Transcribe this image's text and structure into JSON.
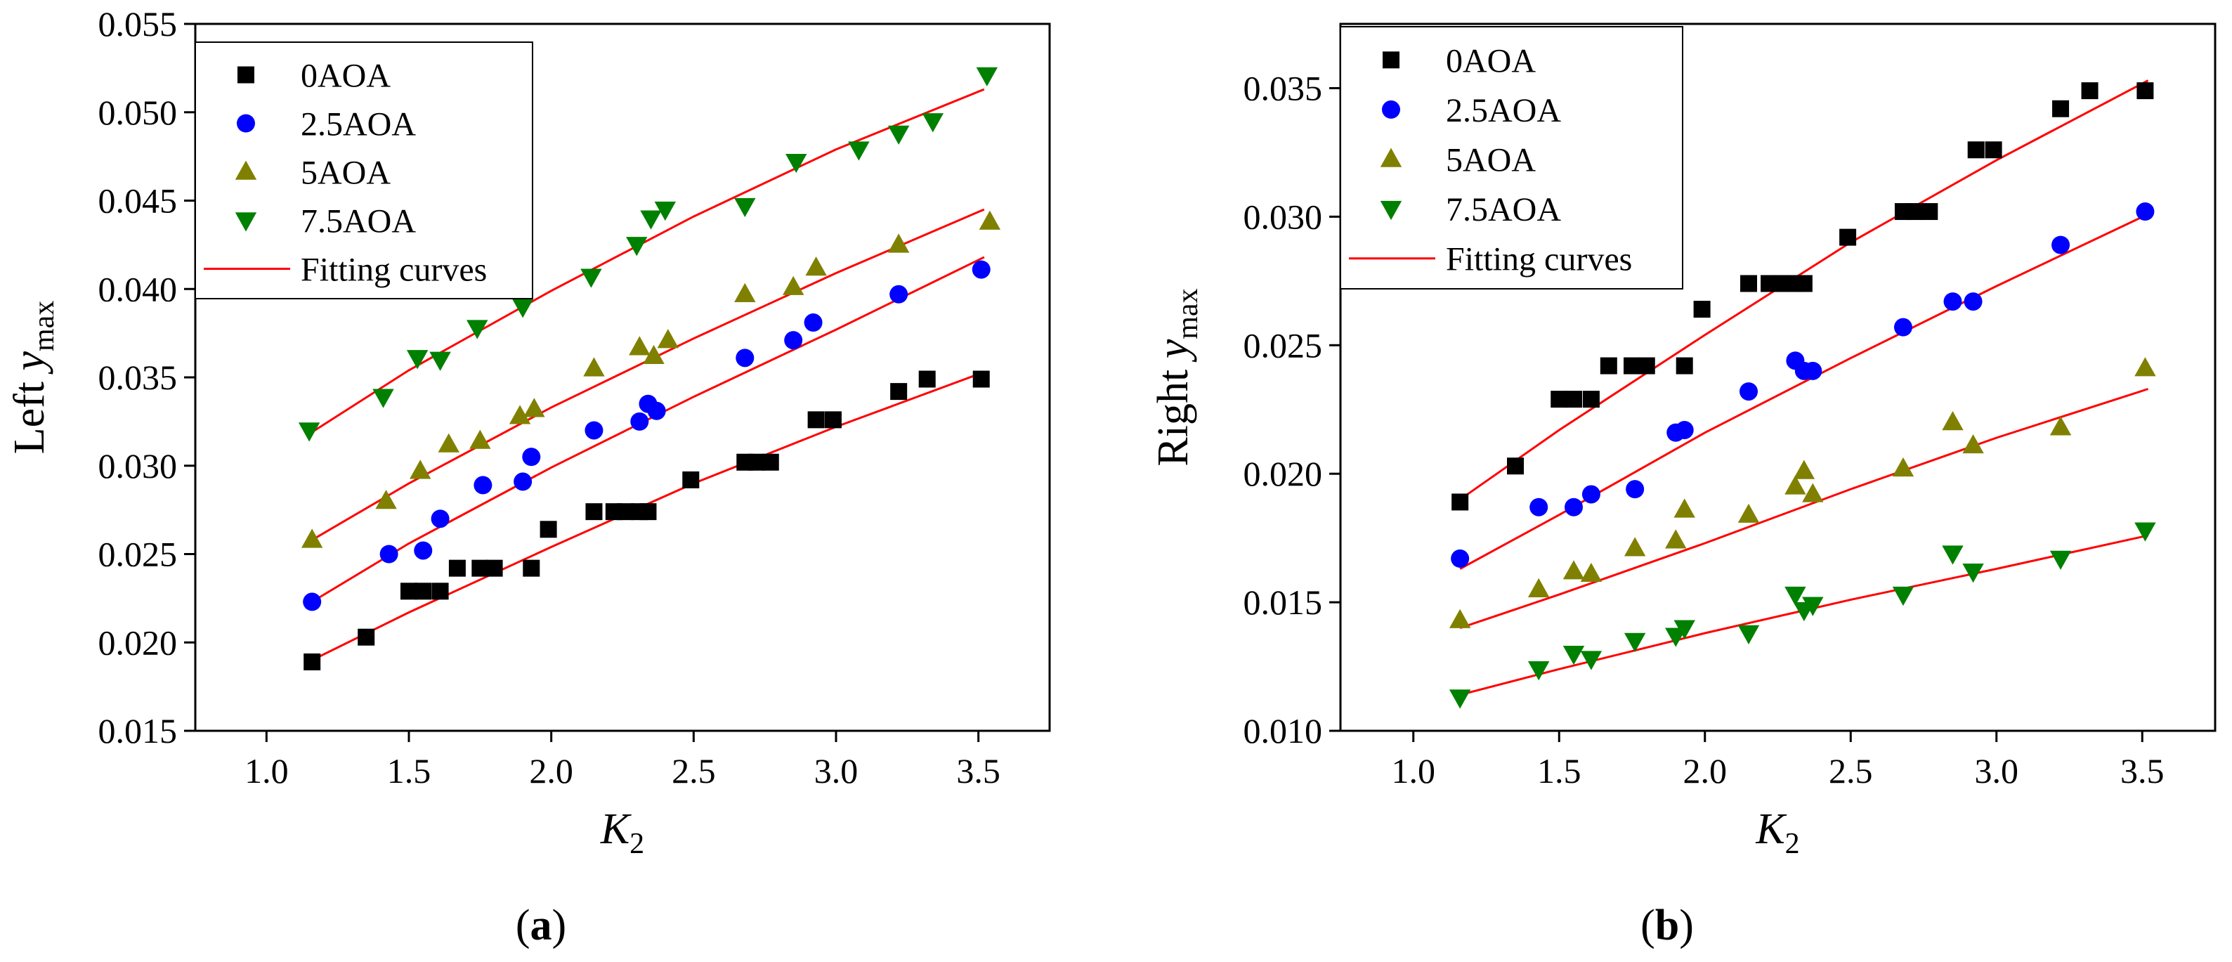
{
  "chart_data": [
    {
      "type": "scatter",
      "panel_label": "(a)",
      "xlabel": "K",
      "xlabel_sub": "2",
      "ylabel_prefix": "Left ",
      "ylabel_var": "y",
      "ylabel_sub": "max",
      "xlim": [
        0.75,
        3.75
      ],
      "ylim": [
        0.015,
        0.055
      ],
      "xticks": [
        1.0,
        1.5,
        2.0,
        2.5,
        3.0,
        3.5
      ],
      "xtick_labels": [
        "1.0",
        "1.5",
        "2.0",
        "2.5",
        "3.0",
        "3.5"
      ],
      "yticks": [
        0.015,
        0.02,
        0.025,
        0.03,
        0.035,
        0.04,
        0.045,
        0.05,
        0.055
      ],
      "ytick_labels": [
        "0.015",
        "0.020",
        "0.025",
        "0.030",
        "0.035",
        "0.040",
        "0.045",
        "0.050",
        "0.055"
      ],
      "legend_position": "top-left",
      "fit_label": "Fitting curves",
      "fit_color": "#ff0000",
      "series": [
        {
          "name": "0AOA",
          "marker": "square",
          "color": "#000000",
          "x": [
            1.16,
            1.35,
            1.5,
            1.55,
            1.61,
            1.67,
            1.75,
            1.8,
            1.93,
            1.99,
            2.15,
            2.22,
            2.26,
            2.31,
            2.34,
            2.49,
            2.68,
            2.72,
            2.77,
            2.93,
            2.99,
            3.22,
            3.32,
            3.51
          ],
          "y": [
            0.0189,
            0.0203,
            0.0229,
            0.0229,
            0.0229,
            0.0242,
            0.0242,
            0.0242,
            0.0242,
            0.0264,
            0.0274,
            0.0274,
            0.0274,
            0.0274,
            0.0274,
            0.0292,
            0.0302,
            0.0302,
            0.0302,
            0.0326,
            0.0326,
            0.0342,
            0.0349,
            0.0349
          ],
          "fit": {
            "x": [
              1.16,
              1.5,
              2.0,
              2.5,
              3.0,
              3.52
            ],
            "y": [
              0.019,
              0.0217,
              0.0254,
              0.029,
              0.0322,
              0.0353
            ]
          }
        },
        {
          "name": "2.5AOA",
          "marker": "circle",
          "color": "#0000ff",
          "x": [
            1.16,
            1.43,
            1.55,
            1.61,
            1.76,
            1.9,
            1.93,
            2.15,
            2.31,
            2.34,
            2.37,
            2.68,
            2.85,
            2.92,
            3.22,
            3.51
          ],
          "y": [
            0.0223,
            0.025,
            0.0252,
            0.027,
            0.0289,
            0.0291,
            0.0305,
            0.032,
            0.0325,
            0.0335,
            0.0331,
            0.0361,
            0.0371,
            0.0381,
            0.0397,
            0.0411
          ],
          "fit": {
            "x": [
              1.16,
              1.5,
              2.0,
              2.5,
              3.0,
              3.52
            ],
            "y": [
              0.0223,
              0.0256,
              0.0299,
              0.0339,
              0.0377,
              0.0418
            ]
          }
        },
        {
          "name": "5AOA",
          "marker": "triangle-up",
          "color": "#808000",
          "x": [
            1.16,
            1.42,
            1.54,
            1.64,
            1.75,
            1.89,
            1.94,
            2.15,
            2.31,
            2.36,
            2.41,
            2.68,
            2.85,
            2.93,
            3.22,
            3.54
          ],
          "y": [
            0.0258,
            0.028,
            0.0297,
            0.0312,
            0.0314,
            0.0328,
            0.0332,
            0.0355,
            0.0367,
            0.0362,
            0.0371,
            0.0397,
            0.0401,
            0.0412,
            0.0425,
            0.0438
          ],
          "fit": {
            "x": [
              1.16,
              1.5,
              2.0,
              2.5,
              3.0,
              3.52
            ],
            "y": [
              0.0258,
              0.029,
              0.0333,
              0.0372,
              0.0409,
              0.0445
            ]
          }
        },
        {
          "name": "7.5AOA",
          "marker": "triangle-down",
          "color": "#008000",
          "x": [
            1.15,
            1.41,
            1.53,
            1.61,
            1.74,
            1.9,
            2.14,
            2.3,
            2.35,
            2.4,
            2.68,
            2.86,
            3.08,
            3.22,
            3.34,
            3.53
          ],
          "y": [
            0.032,
            0.0339,
            0.0361,
            0.036,
            0.0378,
            0.039,
            0.0407,
            0.0425,
            0.044,
            0.0445,
            0.0447,
            0.0472,
            0.0479,
            0.0488,
            0.0495,
            0.0521
          ],
          "fit": {
            "x": [
              1.15,
              1.5,
              2.0,
              2.5,
              3.0,
              3.52
            ],
            "y": [
              0.0318,
              0.0354,
              0.0399,
              0.0441,
              0.0479,
              0.0513
            ]
          }
        }
      ]
    },
    {
      "type": "scatter",
      "panel_label": "(b)",
      "xlabel": "K",
      "xlabel_sub": "2",
      "ylabel_prefix": "Right ",
      "ylabel_var": "y",
      "ylabel_sub": "max",
      "xlim": [
        0.75,
        3.75
      ],
      "ylim": [
        0.01,
        0.0375
      ],
      "xticks": [
        1.0,
        1.5,
        2.0,
        2.5,
        3.0,
        3.5
      ],
      "xtick_labels": [
        "1.0",
        "1.5",
        "2.0",
        "2.5",
        "3.0",
        "3.5"
      ],
      "yticks": [
        0.01,
        0.015,
        0.02,
        0.025,
        0.03,
        0.035
      ],
      "ytick_labels": [
        "0.010",
        "0.015",
        "0.020",
        "0.025",
        "0.030",
        "0.035"
      ],
      "legend_position": "top-left",
      "fit_label": "Fitting curves",
      "fit_color": "#ff0000",
      "series": [
        {
          "name": "0AOA",
          "marker": "square",
          "color": "#000000",
          "x": [
            1.16,
            1.35,
            1.5,
            1.55,
            1.61,
            1.67,
            1.75,
            1.8,
            1.93,
            1.99,
            2.15,
            2.22,
            2.26,
            2.31,
            2.34,
            2.49,
            2.68,
            2.72,
            2.77,
            2.93,
            2.99,
            3.22,
            3.32,
            3.51
          ],
          "y": [
            0.0189,
            0.0203,
            0.0229,
            0.0229,
            0.0229,
            0.0242,
            0.0242,
            0.0242,
            0.0242,
            0.0264,
            0.0274,
            0.0274,
            0.0274,
            0.0274,
            0.0274,
            0.0292,
            0.0302,
            0.0302,
            0.0302,
            0.0326,
            0.0326,
            0.0342,
            0.0349,
            0.0349
          ],
          "fit": {
            "x": [
              1.16,
              1.5,
              2.0,
              2.5,
              3.0,
              3.52
            ],
            "y": [
              0.019,
              0.0217,
              0.0254,
              0.029,
              0.0322,
              0.0353
            ]
          }
        },
        {
          "name": "2.5AOA",
          "marker": "circle",
          "color": "#0000ff",
          "x": [
            1.16,
            1.43,
            1.55,
            1.61,
            1.76,
            1.9,
            1.93,
            2.15,
            2.31,
            2.34,
            2.37,
            2.68,
            2.85,
            2.92,
            3.22,
            3.51
          ],
          "y": [
            0.0167,
            0.0187,
            0.0187,
            0.0192,
            0.0194,
            0.0216,
            0.0217,
            0.0232,
            0.0244,
            0.024,
            0.024,
            0.0257,
            0.0267,
            0.0267,
            0.0289,
            0.0302
          ],
          "fit": {
            "x": [
              1.16,
              1.5,
              2.0,
              2.5,
              3.0,
              3.52
            ],
            "y": [
              0.0163,
              0.0184,
              0.0216,
              0.0245,
              0.0273,
              0.0301
            ]
          }
        },
        {
          "name": "5AOA",
          "marker": "triangle-up",
          "color": "#808000",
          "x": [
            1.16,
            1.43,
            1.55,
            1.61,
            1.76,
            1.9,
            1.93,
            2.15,
            2.31,
            2.34,
            2.37,
            2.68,
            2.85,
            2.92,
            3.22,
            3.51
          ],
          "y": [
            0.0143,
            0.0155,
            0.0162,
            0.0161,
            0.0171,
            0.0174,
            0.0186,
            0.0184,
            0.0195,
            0.0201,
            0.0192,
            0.0202,
            0.022,
            0.0211,
            0.0218,
            0.0241
          ],
          "fit": {
            "x": [
              1.16,
              1.5,
              2.0,
              2.5,
              3.0,
              3.52
            ],
            "y": [
              0.014,
              0.0153,
              0.0173,
              0.0194,
              0.0214,
              0.0233
            ]
          }
        },
        {
          "name": "7.5AOA",
          "marker": "triangle-down",
          "color": "#008000",
          "x": [
            1.16,
            1.43,
            1.55,
            1.61,
            1.76,
            1.9,
            1.93,
            2.15,
            2.31,
            2.34,
            2.37,
            2.68,
            2.85,
            2.92,
            3.22,
            3.51
          ],
          "y": [
            0.0113,
            0.0124,
            0.013,
            0.0128,
            0.0135,
            0.0137,
            0.014,
            0.0138,
            0.0153,
            0.0147,
            0.0149,
            0.0153,
            0.0169,
            0.0162,
            0.0167,
            0.0178
          ],
          "fit": {
            "x": [
              1.16,
              1.5,
              2.0,
              2.5,
              3.0,
              3.52
            ],
            "y": [
              0.0114,
              0.0124,
              0.0138,
              0.0151,
              0.0163,
              0.0176
            ]
          }
        }
      ]
    }
  ]
}
